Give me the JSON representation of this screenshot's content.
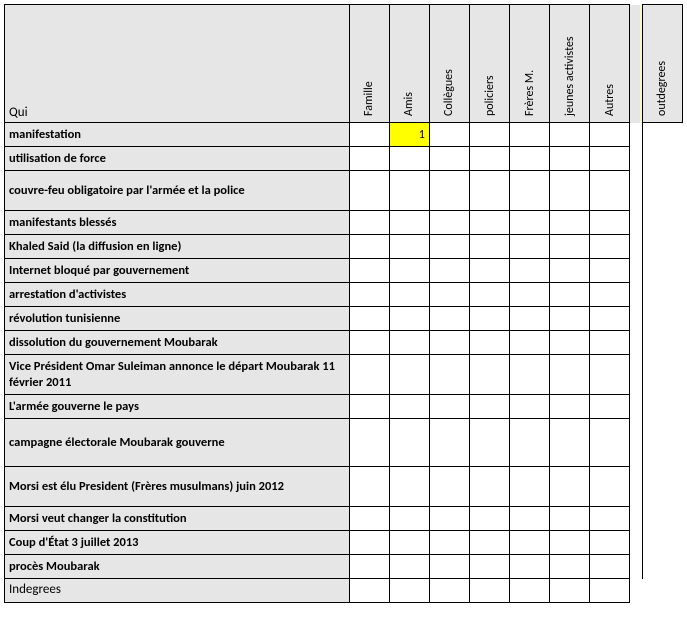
{
  "corner_label": "Qui",
  "columns": [
    "Famille",
    "Amis",
    "Collègues",
    "policiers",
    "Frères M.",
    "jeunes activistes",
    "Autres"
  ],
  "outdegree_label": "outdegrees",
  "rows": [
    {
      "label": "manifestation",
      "cells": [
        "",
        "1",
        "",
        "",
        "",
        "",
        ""
      ],
      "hl_index": 1
    },
    {
      "label": "utilisation de force",
      "cells": [
        "",
        "",
        "",
        "",
        "",
        "",
        ""
      ]
    },
    {
      "label": "couvre-feu obligatoire par l'armée et la police",
      "tall": true,
      "cells": [
        "",
        "",
        "",
        "",
        "",
        "",
        ""
      ]
    },
    {
      "label": "manifestants blessés",
      "cells": [
        "",
        "",
        "",
        "",
        "",
        "",
        ""
      ]
    },
    {
      "label": "Khaled Said (la diffusion en ligne)",
      "cells": [
        "",
        "",
        "",
        "",
        "",
        "",
        ""
      ]
    },
    {
      "label": "Internet bloqué par gouvernement",
      "cells": [
        "",
        "",
        "",
        "",
        "",
        "",
        ""
      ]
    },
    {
      "label": "arrestation d'activistes",
      "cells": [
        "",
        "",
        "",
        "",
        "",
        "",
        ""
      ]
    },
    {
      "label": "révolution tunisienne",
      "cells": [
        "",
        "",
        "",
        "",
        "",
        "",
        ""
      ]
    },
    {
      "label": " dissolution du gouvernement Moubarak",
      "cells": [
        "",
        "",
        "",
        "",
        "",
        "",
        ""
      ]
    },
    {
      "label": " Vice Président Omar Suleiman annonce le départ Moubarak 11 février 2011",
      "tall": true,
      "cells": [
        "",
        "",
        "",
        "",
        "",
        "",
        ""
      ]
    },
    {
      "label": "L'armée gouverne le pays",
      "cells": [
        "",
        "",
        "",
        "",
        "",
        "",
        ""
      ]
    },
    {
      "label": "campagne électorale Moubarak gouverne",
      "tall2": true,
      "cells": [
        "",
        "",
        "",
        "",
        "",
        "",
        ""
      ]
    },
    {
      "label": "Morsi est élu President (Frères musulmans) juin 2012",
      "tall": true,
      "cells": [
        "",
        "",
        "",
        "",
        "",
        "",
        ""
      ]
    },
    {
      "label": "Morsi veut changer la constitution",
      "cells": [
        "",
        "",
        "",
        "",
        "",
        "",
        ""
      ]
    },
    {
      "label": "Coup d'État 3 juillet 2013",
      "cells": [
        "",
        "",
        "",
        "",
        "",
        "",
        ""
      ]
    },
    {
      "label": "procès Moubarak",
      "cells": [
        "",
        "",
        "",
        "",
        "",
        "",
        ""
      ]
    }
  ],
  "indegree_label": "Indegrees",
  "indegree_cells": [
    "",
    "",
    "",
    "",
    "",
    "",
    ""
  ]
}
